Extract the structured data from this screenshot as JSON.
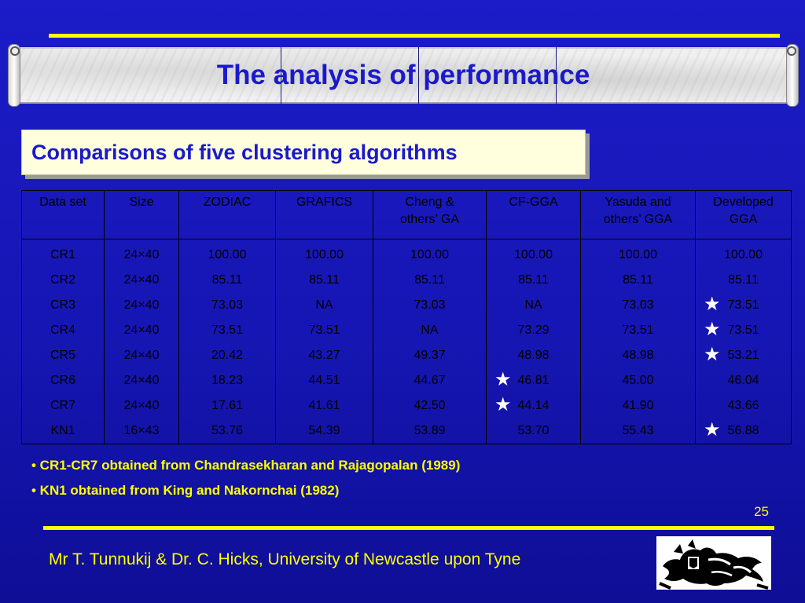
{
  "title": "The analysis of performance",
  "subtitle": "Comparisons of five clustering algorithms",
  "table": {
    "headers": [
      [
        "Data set"
      ],
      [
        "Size"
      ],
      [
        "ZODIAC"
      ],
      [
        "GRAFICS"
      ],
      [
        "Cheng &",
        "others’ GA"
      ],
      [
        "CF-GGA"
      ],
      [
        "Yasuda and",
        "others’ GGA"
      ],
      [
        "Developed",
        "GGA"
      ]
    ],
    "rows": [
      [
        "CR1",
        "24×40",
        "100.00",
        "100.00",
        "100.00",
        "100.00",
        "100.00",
        "100.00"
      ],
      [
        "CR2",
        "24×40",
        "85.11",
        "85.11",
        "85.11",
        "85.11",
        "85.11",
        "85.11"
      ],
      [
        "CR3",
        "24×40",
        "73.03",
        "NA",
        "73.03",
        "NA",
        "73.03",
        "73.51"
      ],
      [
        "CR4",
        "24×40",
        "73.51",
        "73.51",
        "NA",
        "73.29",
        "73.51",
        "73.51"
      ],
      [
        "CR5",
        "24×40",
        "20.42",
        "43.27",
        "49.37",
        "48.98",
        "48.98",
        "53.21"
      ],
      [
        "CR6",
        "24×40",
        "18.23",
        "44.51",
        "44.67",
        "46.81",
        "45.00",
        "46.04"
      ],
      [
        "CR7",
        "24×40",
        "17.61",
        "41.61",
        "42.50",
        "44.14",
        "41.90",
        "43.66"
      ],
      [
        "KN1",
        "16×43",
        "53.76",
        "54.39",
        "53.89",
        "53.70",
        "55.43",
        "56.88"
      ]
    ],
    "starred_cells": [
      [
        2,
        7
      ],
      [
        3,
        7
      ],
      [
        4,
        7
      ],
      [
        5,
        5
      ],
      [
        6,
        5
      ],
      [
        7,
        7
      ]
    ],
    "star_glyph": "★"
  },
  "notes": [
    "• CR1-CR7 obtained from Chandrasekharan and Rajagopalan (1989)",
    "• KN1 obtained from King and Nakornchai (1982)"
  ],
  "page_number": "25",
  "footer": "Mr T. Tunnukij & Dr. C. Hicks, University of Newcastle upon Tyne",
  "logo_icon": "newcastle-lion-crest-icon",
  "colors": {
    "background": "#1616b4",
    "accent_yellow": "#ffff00",
    "title_blue": "#1a1acc",
    "subtitle_box": "#ffffdd"
  }
}
